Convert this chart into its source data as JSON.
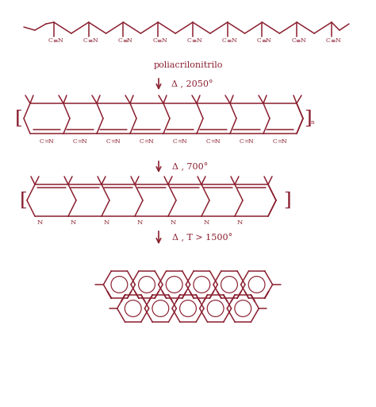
{
  "bg_color": "#ffffff",
  "line_color": "#8B2030",
  "text_color": "#8B2030",
  "label1": "poliacrilonitrilo",
  "arrow1_label": "Δ , 2050°",
  "arrow2_label": "Δ , 700°",
  "arrow3_label": "Δ , T > 1500°",
  "figsize": [
    4.74,
    5.12
  ],
  "dpi": 100
}
